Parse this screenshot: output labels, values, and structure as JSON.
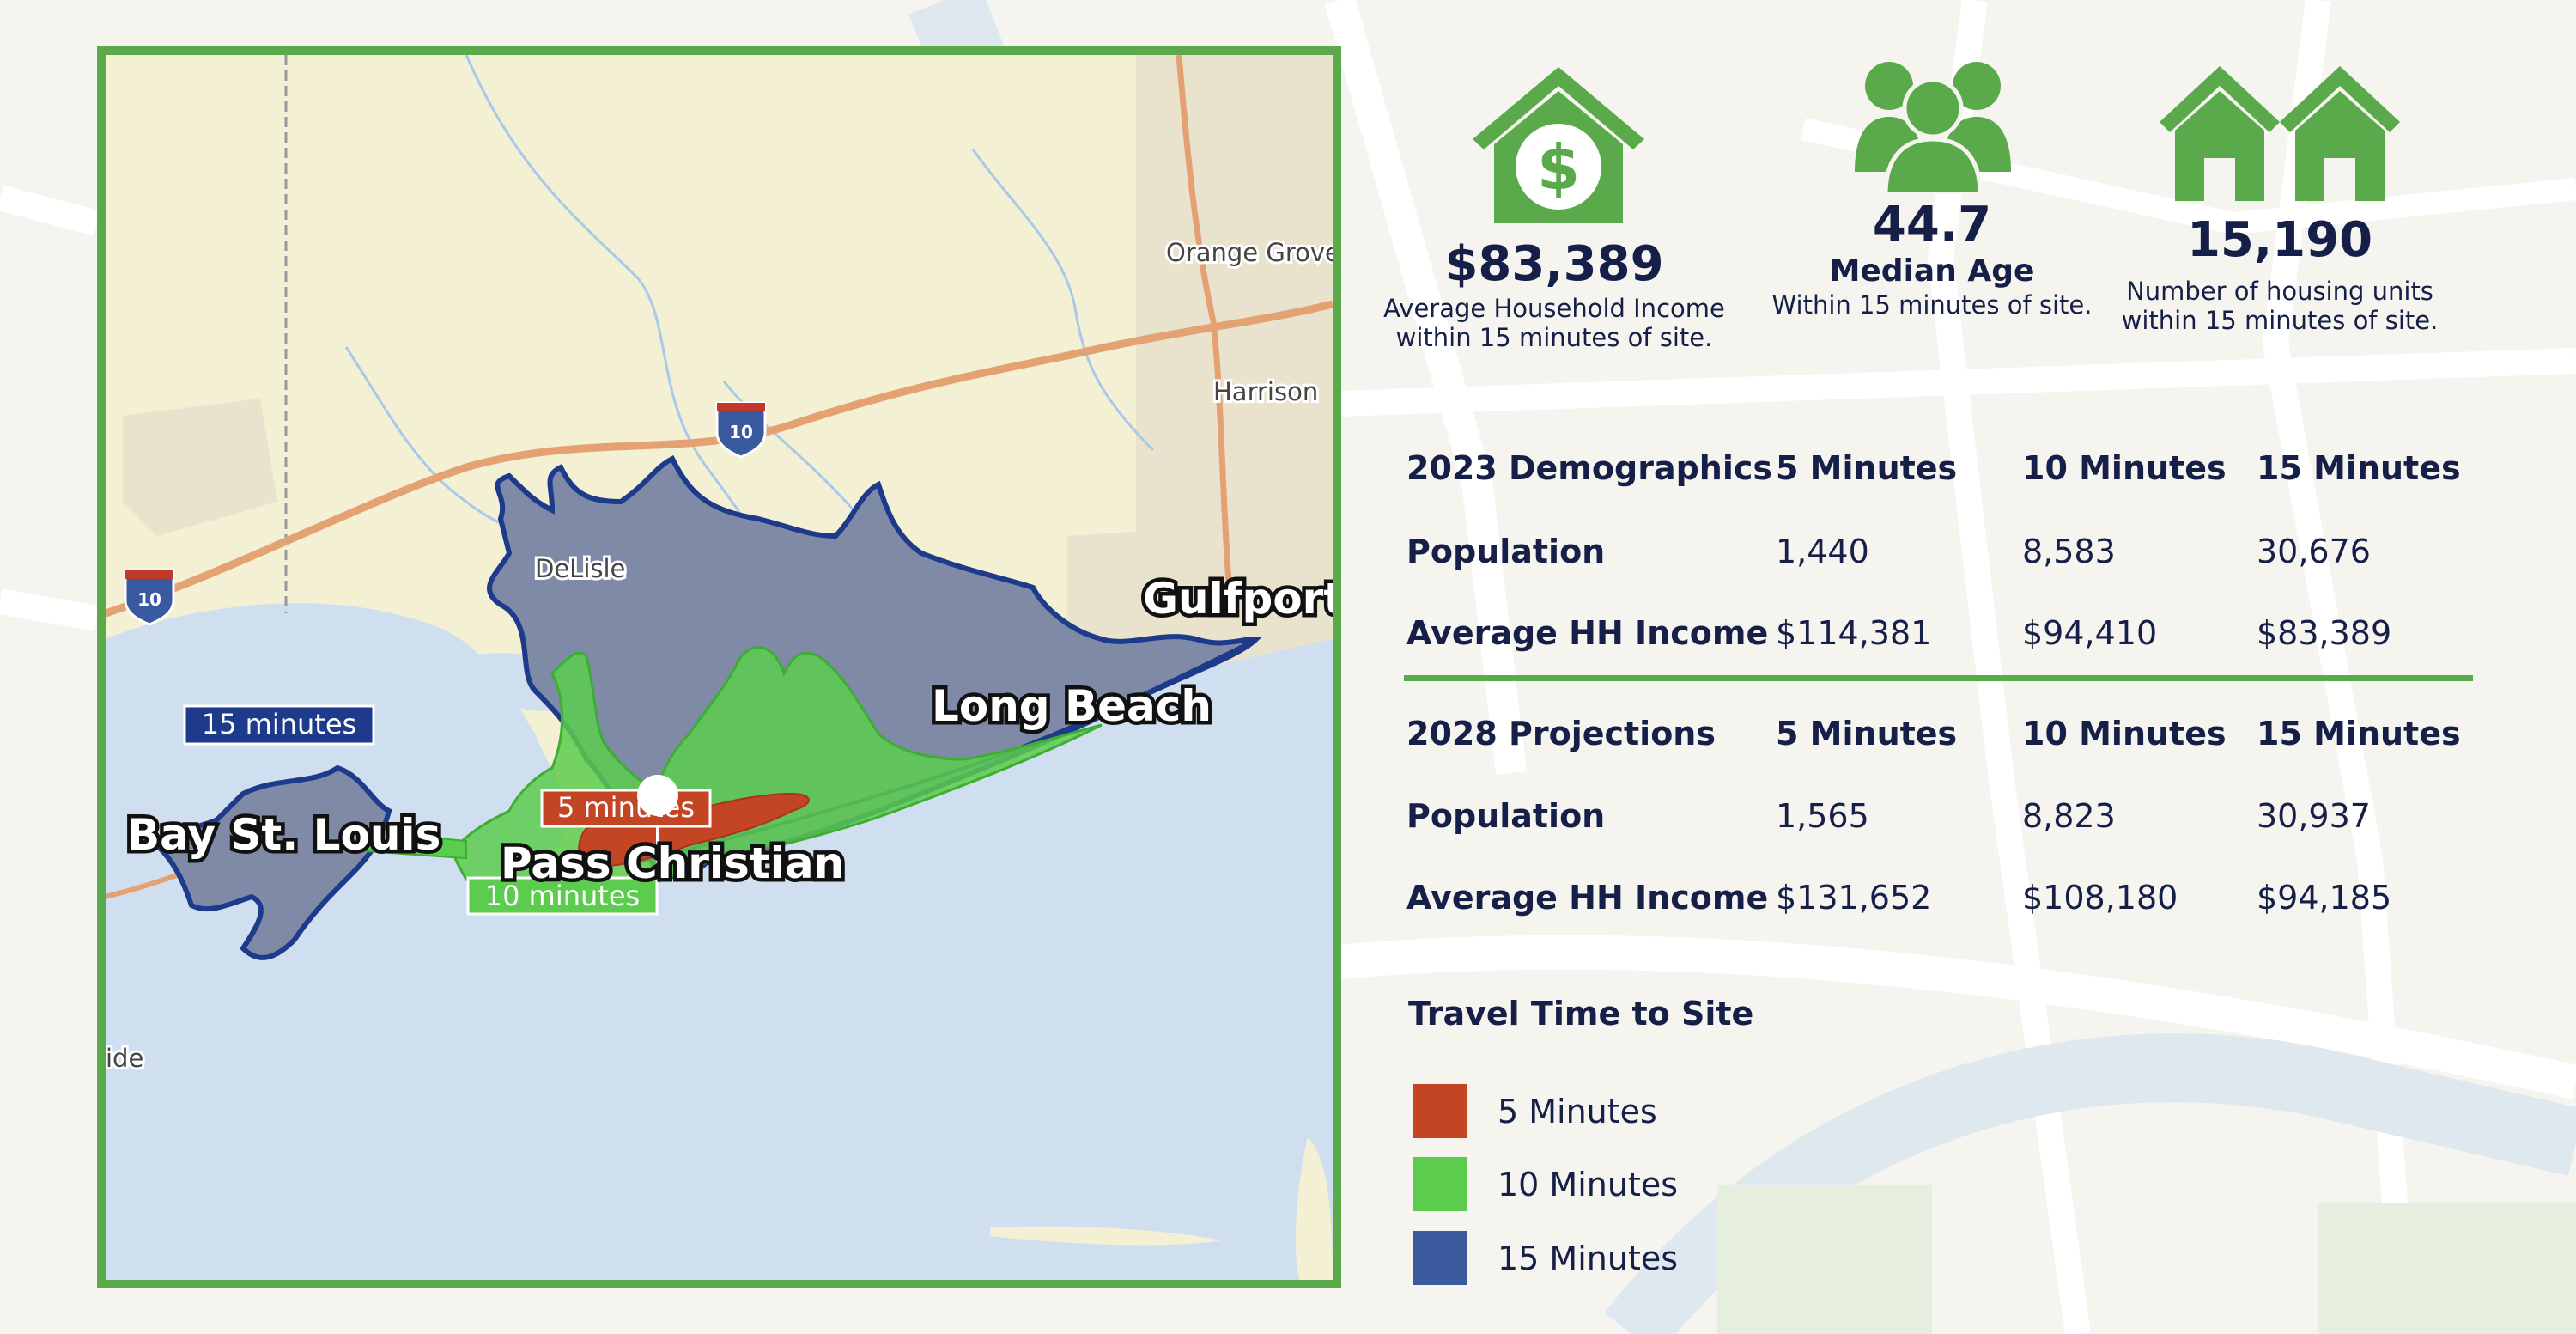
{
  "colors": {
    "accent_green": "#5aaa4b",
    "navy_text": "#151f47",
    "zone_5": "#c34524",
    "zone_10": "#5ccc4e",
    "zone_15": "#3b5a9e",
    "water": "#cfdff0",
    "land": "#f3f0d3"
  },
  "map": {
    "cities": {
      "bay_st_louis": "Bay St. Louis",
      "pass_christian": "Pass Christian",
      "long_beach": "Long Beach",
      "gulfport": "Gulfport"
    },
    "towns": {
      "orange_grove": "Orange Grove",
      "harrison": "Harrison",
      "delisle": "DeLisle",
      "side": "ide"
    },
    "highway": "10",
    "tags": {
      "fifteen": "15 minutes",
      "ten": "10 minutes",
      "five": "5 minutes"
    }
  },
  "stats": [
    {
      "icon": "house-dollar-icon",
      "value": "$83,389",
      "label": "",
      "line1": "Average Household Income",
      "line2": "within 15 minutes of site."
    },
    {
      "icon": "people-group-icon",
      "value": "44.7",
      "label": "Median Age",
      "line1": "Within 15 minutes of site.",
      "line2": ""
    },
    {
      "icon": "two-houses-icon",
      "value": "15,190",
      "label": "",
      "line1": "Number of housing units",
      "line2": "within 15 minutes of site."
    }
  ],
  "table_2023": {
    "header": [
      "2023 Demographics",
      "5 Minutes",
      "10 Minutes",
      "15 Minutes"
    ],
    "population": [
      "Population",
      "1,440",
      "8,583",
      "30,676"
    ],
    "income": [
      "Average HH Income",
      "$114,381",
      "$94,410",
      "$83,389"
    ]
  },
  "table_2028": {
    "header": [
      "2028 Projections",
      "5 Minutes",
      "10 Minutes",
      "15 Minutes"
    ],
    "population": [
      "Population",
      "1,565",
      "8,823",
      "30,937"
    ],
    "income": [
      "Average HH Income",
      "$131,652",
      "$108,180",
      "$94,185"
    ]
  },
  "legend": {
    "title": "Travel Time to Site",
    "items": [
      {
        "label": "5 Minutes",
        "color": "#c34524"
      },
      {
        "label": "10 Minutes",
        "color": "#5ccc4e"
      },
      {
        "label": "15 Minutes",
        "color": "#3b5a9e"
      }
    ]
  }
}
